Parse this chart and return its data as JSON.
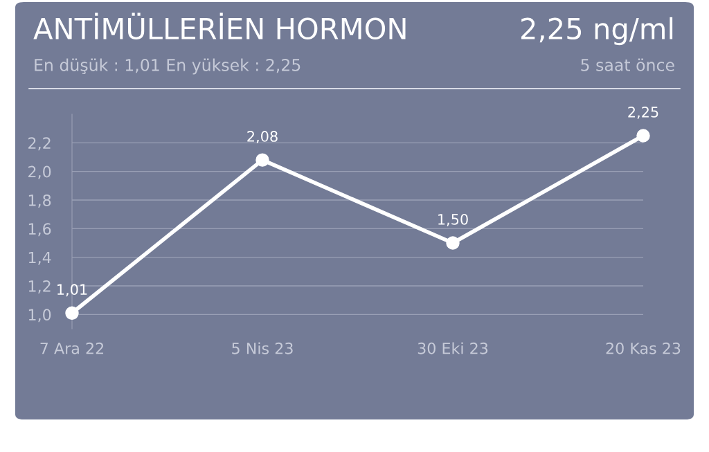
{
  "chart_data": {
    "type": "line",
    "title": "ANTİMÜLLERİEN HORMON",
    "subtitle": "En düşük : 1,01 En yüksek : 2,25",
    "annotations": [
      "2,25 ng/ml",
      "5 saat önce"
    ],
    "categories": [
      "7 Ara 22",
      "5 Nis 23",
      "30 Eki 23",
      "20 Kas 23"
    ],
    "series": [
      {
        "color": "#ffffff",
        "values": [
          1.01,
          2.08,
          1.5,
          2.25
        ],
        "value_labels": [
          "1,01",
          "2,08",
          "1,50",
          "2,25"
        ]
      }
    ],
    "ylim": [
      0.9,
      2.4
    ],
    "yticks": [
      {
        "value": 1.0,
        "label": "1,0"
      },
      {
        "value": 1.2,
        "label": "1,2"
      },
      {
        "value": 1.4,
        "label": "1,4"
      },
      {
        "value": 1.6,
        "label": "1,6"
      },
      {
        "value": 1.8,
        "label": "1,8"
      },
      {
        "value": 2.0,
        "label": "2,0"
      },
      {
        "value": 2.2,
        "label": "2,2"
      }
    ],
    "grid": "y",
    "marker": "circle",
    "line_style": "solid",
    "legend": false
  }
}
